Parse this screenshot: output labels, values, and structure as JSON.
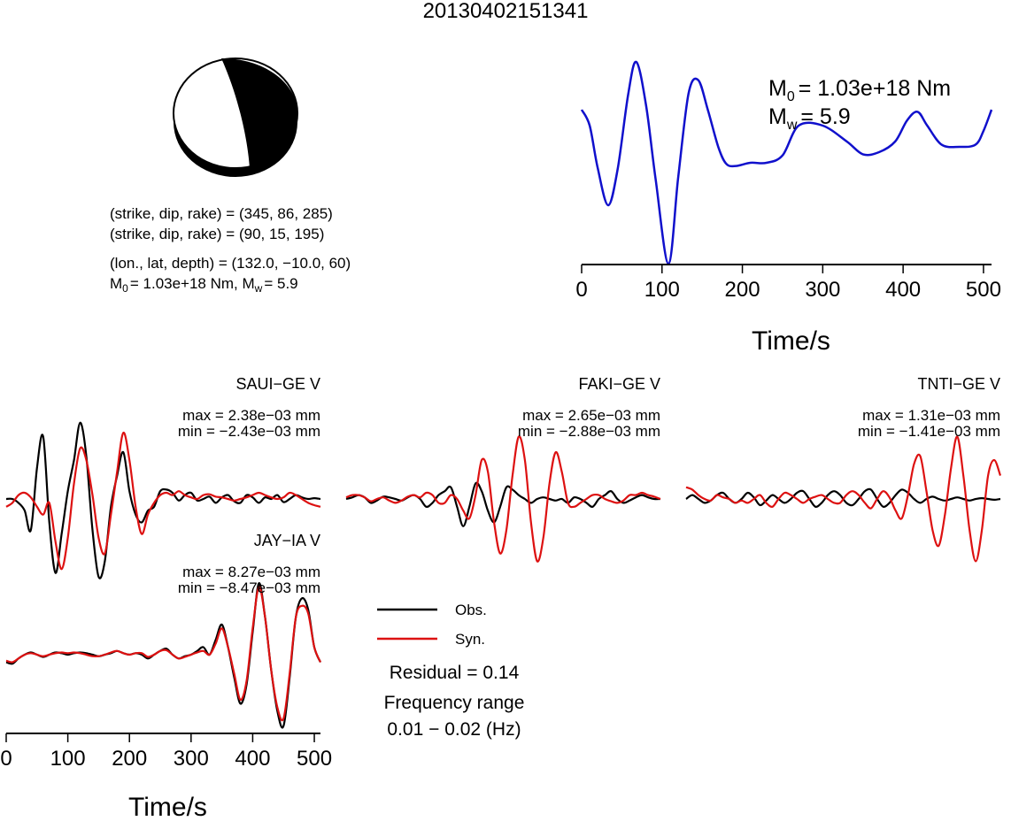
{
  "title": "20130402151341",
  "mechanism": {
    "plane1": "(strike, dip, rake) = (345, 86, 285)",
    "plane2": "(strike, dip, rake) = (90, 15, 195)",
    "location": "(lon., lat, depth) = (132.0, −10.0, 60)",
    "moment_line": {
      "m0_value": "= 1.03e+18 Nm, M",
      "mw_value": "= 5.9"
    }
  },
  "stf": {
    "m0_value": "= 1.03e+18 Nm",
    "mw_value": "= 5.9",
    "sub0": "0",
    "subw": "w"
  },
  "legend": {
    "obs": "Obs.",
    "syn": "Syn.",
    "residual": "Residual = 0.14",
    "freq_label": "Frequency range",
    "freq_value": "0.01 − 0.02 (Hz)"
  },
  "colors": {
    "obs": "#000000",
    "syn": "#dd1111",
    "stf": "#1010cc"
  },
  "chart_data": [
    {
      "type": "line",
      "name": "source-time-function",
      "xlabel": "Time/s",
      "xlim": [
        0,
        510
      ],
      "xticks": [
        0,
        100,
        200,
        300,
        400,
        500
      ],
      "grid": false,
      "series": [
        {
          "x": [
            0,
            10,
            20,
            33,
            45,
            58,
            68,
            80,
            92,
            108,
            120,
            133,
            145,
            157,
            170,
            180,
            192,
            210,
            230,
            250,
            270,
            300,
            330,
            350,
            370,
            390,
            405,
            418,
            430,
            448,
            470,
            490,
            500,
            510
          ],
          "y": [
            0.45,
            0.3,
            -0.1,
            -0.45,
            -0.1,
            0.6,
            0.9,
            0.5,
            -0.2,
            -1.0,
            -0.2,
            0.6,
            0.73,
            0.45,
            0.1,
            -0.06,
            -0.08,
            -0.05,
            -0.05,
            0.02,
            0.3,
            0.3,
            0.15,
            0.03,
            0.05,
            0.15,
            0.35,
            0.43,
            0.3,
            0.12,
            0.1,
            0.12,
            0.25,
            0.45
          ]
        }
      ]
    },
    {
      "type": "line",
      "name": "SAUI",
      "title": "SAUI−GE V",
      "max_label": "max = 2.38e−03 mm",
      "min_label": "min = −2.43e−03 mm",
      "x": [
        0,
        10,
        20,
        30,
        40,
        50,
        60,
        70,
        80,
        90,
        100,
        110,
        120,
        130,
        140,
        150,
        160,
        170,
        180,
        190,
        200,
        210,
        220,
        230,
        240,
        250,
        260,
        270,
        280,
        290,
        300,
        310,
        320,
        330,
        340,
        350,
        360,
        370,
        380,
        390,
        400,
        410,
        420,
        430,
        440,
        450,
        460,
        470,
        480,
        490,
        500,
        510
      ],
      "series": [
        {
          "name": "Obs.",
          "values": [
            0.0,
            0.0,
            -0.05,
            -0.15,
            -0.4,
            0.4,
            0.8,
            -0.3,
            -0.95,
            -0.45,
            0.1,
            0.5,
            0.98,
            0.55,
            -0.4,
            -1.0,
            -0.8,
            -0.1,
            0.3,
            0.6,
            0.1,
            -0.2,
            -0.3,
            -0.15,
            -0.1,
            0.1,
            0.12,
            0.08,
            -0.02,
            0.05,
            0.08,
            -0.02,
            0.0,
            0.03,
            -0.05,
            0.02,
            0.05,
            -0.03,
            -0.05,
            0.05,
            0.02,
            -0.05,
            0.02,
            0.0,
            0.05,
            -0.04,
            0.0,
            0.05,
            0.02,
            0.0,
            0.01,
            0.0
          ]
        },
        {
          "name": "Syn.",
          "values": [
            -0.1,
            -0.05,
            0.05,
            0.08,
            0.02,
            -0.1,
            -0.2,
            -0.05,
            -0.55,
            -0.9,
            -0.5,
            0.2,
            0.65,
            0.5,
            0.05,
            -0.5,
            -0.7,
            -0.2,
            0.35,
            0.85,
            0.5,
            -0.1,
            -0.45,
            -0.2,
            -0.05,
            0.05,
            0.08,
            0.05,
            0.1,
            0.05,
            0.02,
            0.0,
            0.05,
            0.06,
            0.03,
            0.02,
            0.0,
            -0.02,
            0.0,
            0.02,
            0.05,
            0.08,
            0.05,
            0.02,
            0.0,
            0.02,
            0.08,
            0.05,
            0.0,
            -0.05,
            -0.08,
            -0.1
          ]
        }
      ]
    },
    {
      "type": "line",
      "name": "FAKI",
      "title": "FAKI−GE V",
      "max_label": "max = 2.65e−03 mm",
      "min_label": "min = −2.88e−03 mm",
      "x": [
        0,
        10,
        20,
        30,
        40,
        50,
        60,
        70,
        80,
        90,
        100,
        110,
        120,
        130,
        140,
        150,
        160,
        170,
        180,
        190,
        200,
        210,
        220,
        230,
        240,
        250,
        260,
        270,
        280,
        290,
        300,
        310,
        320,
        330,
        340,
        350,
        360,
        370,
        380,
        390,
        400,
        410,
        420,
        430,
        440,
        450,
        460,
        470,
        480,
        490,
        500,
        510
      ],
      "series": [
        {
          "name": "Obs.",
          "values": [
            0.0,
            0.02,
            0.05,
            0.02,
            -0.05,
            -0.02,
            0.03,
            0.02,
            0.0,
            -0.02,
            0.02,
            0.05,
            0.0,
            -0.1,
            -0.05,
            0.05,
            0.1,
            0.15,
            -0.1,
            -0.35,
            -0.1,
            0.2,
            0.1,
            -0.15,
            -0.3,
            -0.1,
            0.15,
            0.12,
            0.05,
            0.0,
            -0.05,
            0.0,
            0.02,
            0.0,
            -0.02,
            0.0,
            -0.05,
            0.02,
            0.0,
            -0.05,
            -0.1,
            0.0,
            0.05,
            0.1,
            0.0,
            -0.05,
            -0.02,
            0.02,
            0.05,
            0.02,
            0.0,
            0.0
          ]
        },
        {
          "name": "Syn.",
          "values": [
            0.02,
            0.05,
            0.05,
            0.02,
            -0.03,
            0.0,
            0.02,
            -0.02,
            -0.05,
            -0.02,
            0.03,
            0.05,
            0.02,
            0.08,
            0.05,
            -0.05,
            -0.05,
            0.05,
            0.0,
            -0.15,
            -0.25,
            0.05,
            0.5,
            0.35,
            -0.3,
            -0.7,
            -0.4,
            0.3,
            0.8,
            0.5,
            -0.3,
            -0.8,
            -0.5,
            0.2,
            0.6,
            0.35,
            -0.05,
            -0.1,
            -0.05,
            0.0,
            0.05,
            0.05,
            0.0,
            -0.03,
            -0.05,
            -0.02,
            0.05,
            0.05,
            0.08,
            0.05,
            0.03,
            0.0
          ]
        }
      ]
    },
    {
      "type": "line",
      "name": "TNTI",
      "title": "TNTI−GE V",
      "max_label": "max = 1.31e−03 mm",
      "min_label": "min = −1.41e−03 mm",
      "x": [
        0,
        10,
        20,
        30,
        40,
        50,
        60,
        70,
        80,
        90,
        100,
        110,
        120,
        130,
        140,
        150,
        160,
        170,
        180,
        190,
        200,
        210,
        220,
        230,
        240,
        250,
        260,
        270,
        280,
        290,
        300,
        310,
        320,
        330,
        340,
        350,
        360,
        370,
        380,
        390,
        400,
        410,
        420,
        430,
        440,
        450,
        460,
        470,
        480,
        490,
        500,
        510
      ],
      "series": [
        {
          "name": "Obs.",
          "values": [
            0.0,
            0.05,
            0.0,
            -0.05,
            -0.02,
            0.05,
            0.08,
            0.0,
            -0.05,
            0.0,
            0.08,
            0.02,
            -0.08,
            -0.02,
            0.05,
            0.0,
            -0.05,
            0.0,
            0.08,
            0.1,
            0.0,
            -0.1,
            -0.05,
            0.05,
            0.1,
            0.05,
            -0.05,
            -0.08,
            0.0,
            0.1,
            0.12,
            0.0,
            -0.1,
            -0.05,
            0.05,
            0.12,
            0.08,
            0.0,
            -0.05,
            0.0,
            0.03,
            0.0,
            -0.02,
            0.0,
            0.02,
            0.0,
            -0.02,
            0.0,
            0.01,
            0.0,
            -0.01,
            0.0
          ]
        },
        {
          "name": "Syn.",
          "values": [
            0.15,
            0.12,
            0.05,
            0.0,
            -0.02,
            0.05,
            0.02,
            0.0,
            -0.05,
            -0.02,
            -0.05,
            0.0,
            0.05,
            -0.05,
            -0.1,
            0.0,
            0.08,
            0.05,
            0.0,
            -0.05,
            0.0,
            0.03,
            0.05,
            0.0,
            -0.05,
            -0.05,
            0.05,
            0.1,
            0.05,
            -0.05,
            -0.12,
            0.0,
            0.1,
            0.02,
            -0.15,
            -0.25,
            0.05,
            0.45,
            0.55,
            0.1,
            -0.4,
            -0.6,
            -0.2,
            0.4,
            0.8,
            0.3,
            -0.4,
            -0.8,
            -0.4,
            0.3,
            0.5,
            0.3
          ]
        }
      ]
    },
    {
      "type": "line",
      "name": "JAY",
      "title": "JAY−IA V",
      "max_label": "max = 8.27e−03 mm",
      "min_label": "min = −8.47e−03 mm",
      "xlabel": "Time/s",
      "xlim": [
        0,
        510
      ],
      "xticks": [
        0,
        100,
        200,
        300,
        400,
        500
      ],
      "x": [
        0,
        10,
        20,
        30,
        40,
        50,
        60,
        70,
        80,
        90,
        100,
        110,
        120,
        130,
        140,
        150,
        160,
        170,
        180,
        190,
        200,
        210,
        220,
        230,
        240,
        250,
        260,
        270,
        280,
        290,
        300,
        310,
        320,
        330,
        340,
        350,
        360,
        370,
        380,
        390,
        400,
        410,
        420,
        430,
        440,
        450,
        460,
        470,
        480,
        490,
        500,
        510
      ],
      "series": [
        {
          "name": "Obs.",
          "values": [
            -0.1,
            -0.12,
            -0.05,
            0.0,
            0.03,
            0.0,
            -0.03,
            0.0,
            0.03,
            0.02,
            0.0,
            0.02,
            0.03,
            0.02,
            0.0,
            -0.02,
            0.0,
            0.02,
            0.05,
            0.02,
            0.0,
            0.02,
            0.0,
            -0.05,
            0.0,
            0.05,
            0.08,
            0.0,
            -0.05,
            -0.02,
            0.0,
            0.05,
            0.1,
            0.0,
            0.2,
            0.4,
            0.1,
            -0.3,
            -0.65,
            -0.4,
            0.3,
            0.95,
            0.5,
            -0.2,
            -0.75,
            -0.95,
            -0.3,
            0.5,
            0.75,
            0.6,
            0.1,
            -0.1
          ]
        },
        {
          "name": "Syn.",
          "values": [
            -0.08,
            -0.1,
            -0.05,
            0.0,
            0.02,
            0.0,
            -0.02,
            0.0,
            0.02,
            0.03,
            0.02,
            0.03,
            0.02,
            0.0,
            -0.02,
            -0.02,
            0.0,
            0.03,
            0.05,
            0.02,
            0.0,
            0.02,
            0.02,
            -0.03,
            0.0,
            0.05,
            0.06,
            0.0,
            -0.05,
            -0.03,
            0.0,
            0.03,
            0.05,
            0.0,
            0.15,
            0.35,
            0.1,
            -0.25,
            -0.6,
            -0.35,
            0.35,
            0.9,
            0.5,
            -0.2,
            -0.7,
            -0.85,
            -0.25,
            0.5,
            0.65,
            0.55,
            0.1,
            -0.1
          ]
        }
      ]
    }
  ]
}
